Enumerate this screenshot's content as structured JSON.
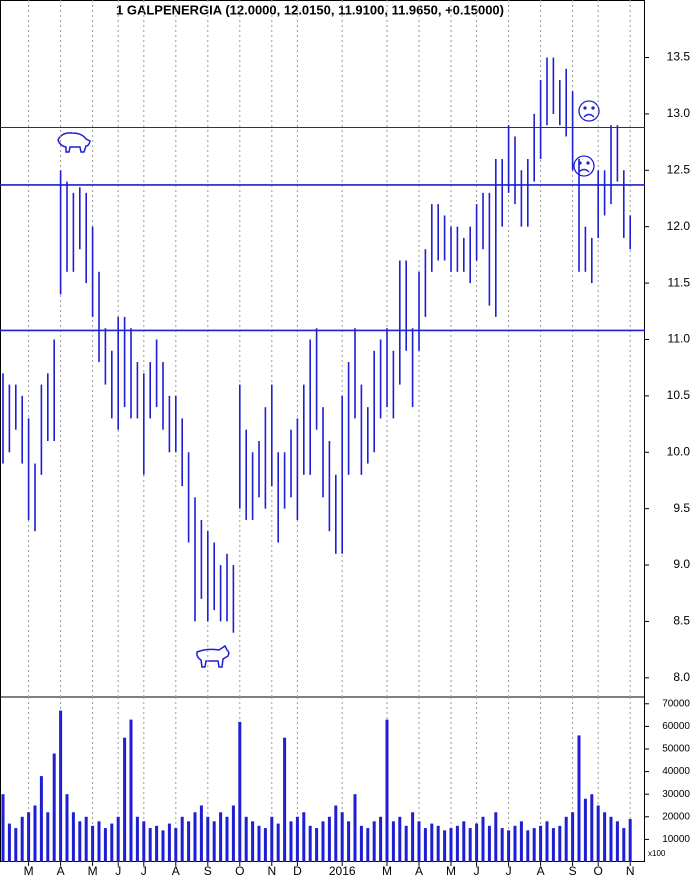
{
  "chart_data": [
    {
      "type": "range-bar",
      "title": "1 GALPENERGIA (12.0000, 12.0150, 11.9100, 11.9650, +0.15000)",
      "color": "#1e1ed2",
      "high": [
        10.7,
        10.6,
        10.6,
        10.5,
        10.3,
        9.9,
        10.6,
        10.7,
        11.0,
        12.5,
        12.4,
        12.3,
        12.35,
        12.3,
        12.0,
        11.6,
        11.1,
        10.9,
        11.2,
        11.2,
        11.1,
        10.8,
        10.7,
        10.8,
        11.0,
        10.8,
        10.5,
        10.5,
        10.3,
        10.0,
        9.6,
        9.4,
        9.3,
        9.2,
        9.0,
        9.1,
        9.0,
        10.6,
        10.2,
        10.0,
        10.1,
        10.4,
        10.6,
        10.0,
        10.0,
        10.2,
        10.3,
        10.6,
        11.0,
        11.1,
        10.4,
        10.1,
        9.8,
        10.5,
        10.8,
        11.1,
        10.6,
        10.4,
        10.9,
        11.0,
        11.1,
        10.9,
        11.7,
        11.7,
        11.1,
        11.6,
        11.8,
        12.2,
        12.2,
        12.1,
        12.0,
        12.0,
        11.9,
        12.0,
        12.2,
        12.3,
        12.3,
        12.6,
        12.6,
        12.9,
        12.8,
        12.5,
        12.6,
        13.0,
        13.3,
        13.5,
        13.5,
        13.3,
        13.4,
        13.2,
        12.6,
        12.0,
        11.9,
        12.5,
        12.5,
        12.9,
        12.9,
        12.5,
        12.1
      ],
      "low": [
        9.9,
        10.0,
        10.2,
        9.9,
        9.4,
        9.3,
        9.8,
        10.1,
        10.1,
        11.4,
        11.6,
        11.6,
        11.8,
        11.5,
        11.2,
        10.8,
        10.6,
        10.3,
        10.2,
        10.4,
        10.3,
        10.3,
        9.8,
        10.3,
        10.4,
        10.2,
        10.0,
        10.0,
        9.7,
        9.2,
        8.5,
        8.7,
        8.5,
        8.6,
        8.5,
        8.5,
        8.4,
        9.5,
        9.4,
        9.4,
        9.6,
        9.5,
        9.7,
        9.2,
        9.5,
        9.6,
        9.4,
        9.8,
        9.8,
        10.2,
        9.6,
        9.3,
        9.1,
        9.1,
        9.8,
        10.3,
        9.8,
        9.9,
        10.0,
        10.3,
        10.4,
        10.3,
        10.6,
        10.9,
        10.4,
        10.9,
        11.2,
        11.6,
        11.7,
        11.7,
        11.6,
        11.6,
        11.6,
        11.5,
        11.7,
        11.8,
        11.3,
        11.2,
        12.0,
        12.3,
        12.2,
        12.0,
        12.0,
        12.4,
        12.6,
        12.9,
        13.0,
        12.9,
        12.8,
        12.5,
        11.6,
        11.6,
        11.5,
        11.9,
        12.1,
        12.2,
        12.4,
        11.9,
        11.8
      ],
      "hlines": [
        12.88,
        12.37,
        11.08
      ],
      "ylim": [
        7.83,
        14.01
      ],
      "yticks": [
        {
          "value": 8,
          "label": "8.0"
        },
        8.5,
        {
          "value": 9,
          "label": "9.0"
        },
        9.5,
        {
          "value": 10,
          "label": "10.0"
        },
        10.5,
        {
          "value": 11,
          "label": "11.0"
        },
        11.5,
        {
          "value": 12,
          "label": "12.0"
        },
        12.5,
        {
          "value": 13,
          "label": "13.0"
        },
        13.5
      ],
      "xticks": [
        {
          "value": 4,
          "label": "M"
        },
        {
          "value": 9,
          "label": "A"
        },
        {
          "value": 14,
          "label": "M"
        },
        {
          "value": 18,
          "label": "J"
        },
        {
          "value": 22,
          "label": "J"
        },
        {
          "value": 27,
          "label": "A"
        },
        {
          "value": 32,
          "label": "S"
        },
        {
          "value": 37,
          "label": "O"
        },
        {
          "value": 42,
          "label": "N"
        },
        {
          "value": 46,
          "label": "D"
        },
        {
          "value": 53,
          "label": "2016"
        },
        {
          "value": 60,
          "label": "M"
        },
        {
          "value": 65,
          "label": "A"
        },
        {
          "value": 70,
          "label": "M"
        },
        {
          "value": 74,
          "label": "J"
        },
        {
          "value": 79,
          "label": "J"
        },
        {
          "value": 84,
          "label": "A"
        },
        {
          "value": 89,
          "label": "S"
        },
        {
          "value": 93,
          "label": "O"
        },
        {
          "value": 98,
          "label": "N"
        }
      ]
    },
    {
      "type": "bar",
      "color": "#1e1ed2",
      "unit_label": "x100",
      "values": [
        30000,
        17000,
        15000,
        20000,
        22000,
        25000,
        38000,
        22000,
        48000,
        67000,
        30000,
        22000,
        18000,
        20000,
        16000,
        18000,
        15000,
        17000,
        20000,
        55000,
        63000,
        20000,
        18000,
        15000,
        16000,
        14000,
        17000,
        15000,
        20000,
        18000,
        22000,
        25000,
        20000,
        18000,
        22000,
        20000,
        25000,
        62000,
        20000,
        18000,
        16000,
        15000,
        20000,
        17000,
        55000,
        18000,
        20000,
        22000,
        16000,
        15000,
        18000,
        20000,
        25000,
        22000,
        18000,
        30000,
        16000,
        15000,
        18000,
        20000,
        63000,
        18000,
        20000,
        16000,
        22000,
        18000,
        15000,
        17000,
        16000,
        14000,
        15000,
        16000,
        18000,
        15000,
        17000,
        20000,
        16000,
        22000,
        15000,
        14000,
        16000,
        18000,
        14000,
        15000,
        16000,
        18000,
        15000,
        16000,
        20000,
        22000,
        56000,
        28000,
        30000,
        25000,
        22000,
        20000,
        18000,
        15000,
        19000
      ],
      "ylim": [
        0,
        73000
      ],
      "yticks": [
        10000,
        20000,
        30000,
        40000,
        50000,
        60000,
        70000
      ]
    }
  ]
}
